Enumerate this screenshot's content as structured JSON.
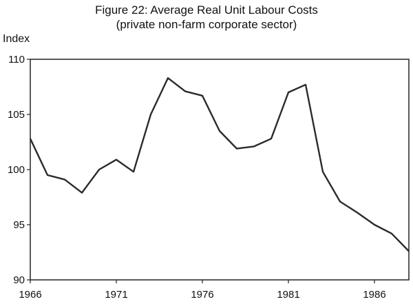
{
  "chart_data": {
    "type": "line",
    "title": "Figure 22: Average Real Unit Labour Costs",
    "subtitle": "(private non-farm corporate sector)",
    "xlabel": "",
    "ylabel": "Index",
    "xlim": [
      1966,
      1988
    ],
    "ylim": [
      90,
      110
    ],
    "x_ticks": [
      1966,
      1971,
      1976,
      1981,
      1986
    ],
    "y_ticks": [
      90,
      95,
      100,
      105,
      110
    ],
    "grid": false,
    "line_color": "#2a2a2a",
    "series": [
      {
        "x": [
          1966,
          1967,
          1968,
          1969,
          1970,
          1971,
          1972,
          1973,
          1974,
          1975,
          1976,
          1977,
          1978,
          1979,
          1980,
          1981,
          1982,
          1983,
          1984,
          1985,
          1986,
          1987,
          1988
        ],
        "values": [
          102.8,
          99.5,
          99.1,
          97.9,
          100.0,
          100.9,
          99.8,
          105.0,
          108.3,
          107.1,
          106.7,
          103.5,
          101.9,
          102.1,
          102.8,
          107.0,
          107.7,
          99.8,
          97.1,
          96.1,
          95.0,
          94.2,
          92.6
        ]
      }
    ]
  }
}
